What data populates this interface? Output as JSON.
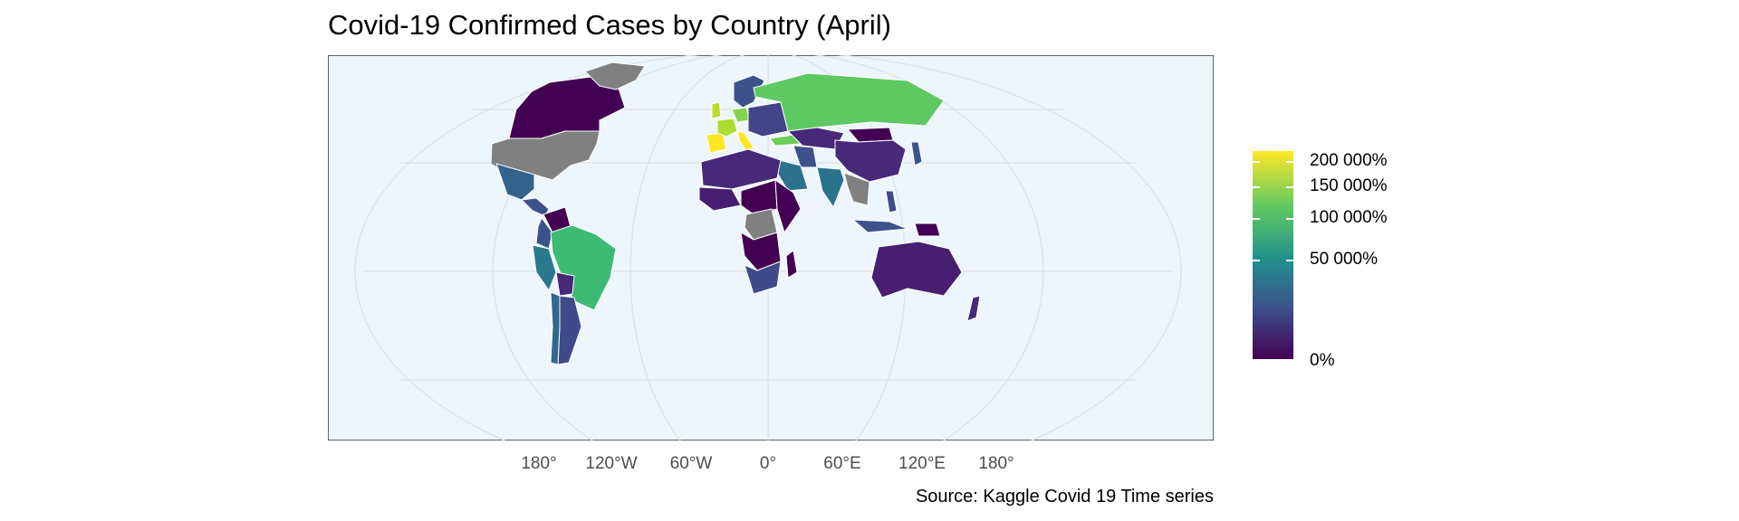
{
  "title": "Covid-19 Confirmed Cases by Country (April)",
  "caption": "Source: Kaggle Covid 19 Time series",
  "colors": {
    "ocean": "#eef6fd",
    "panel_border": "#333333",
    "graticule": "#e0e0e0",
    "no_data": "#808080",
    "scale_low": "#440154",
    "scale_high": "#fde725"
  },
  "x_axis": {
    "ticks": [
      "180°",
      "120°W",
      "60°W",
      "0°",
      "60°E",
      "120°E",
      "180°"
    ]
  },
  "legend": {
    "labels": [
      "200 000%",
      "150 000%",
      "100 000%",
      "50 000%",
      "0%"
    ]
  },
  "chart_data": {
    "type": "choropleth",
    "projection": "Robinson (world)",
    "color_scale": "viridis",
    "values_unit": "%",
    "legend_breaks": [
      200000,
      150000,
      100000,
      50000,
      0
    ],
    "regions": [
      {
        "name": "Canada",
        "fill": "#440154"
      },
      {
        "name": "United States",
        "fill": "#808080"
      },
      {
        "name": "Greenland",
        "fill": "#808080"
      },
      {
        "name": "Mexico",
        "fill": "#33638d"
      },
      {
        "name": "Central America",
        "fill": "#3b528b"
      },
      {
        "name": "Venezuela",
        "fill": "#440154"
      },
      {
        "name": "Colombia",
        "fill": "#3b528b"
      },
      {
        "name": "Peru",
        "fill": "#2a788e"
      },
      {
        "name": "Brazil",
        "fill": "#3cbb75"
      },
      {
        "name": "Bolivia",
        "fill": "#482878"
      },
      {
        "name": "Argentina",
        "fill": "#3e4a89"
      },
      {
        "name": "Chile",
        "fill": "#31688e"
      },
      {
        "name": "Spain",
        "fill": "#fde725"
      },
      {
        "name": "Italy",
        "fill": "#fde725"
      },
      {
        "name": "France",
        "fill": "#addc30"
      },
      {
        "name": "United Kingdom",
        "fill": "#b8de29"
      },
      {
        "name": "Germany",
        "fill": "#84d44b"
      },
      {
        "name": "Scandinavia",
        "fill": "#3b528b"
      },
      {
        "name": "Eastern Europe",
        "fill": "#414487"
      },
      {
        "name": "Russia",
        "fill": "#5ec962"
      },
      {
        "name": "Turkey",
        "fill": "#6ccd5a"
      },
      {
        "name": "Kazakhstan",
        "fill": "#482878"
      },
      {
        "name": "Mongolia",
        "fill": "#440154"
      },
      {
        "name": "China",
        "fill": "#482878"
      },
      {
        "name": "Iran",
        "fill": "#3b528b"
      },
      {
        "name": "Saudi Arabia",
        "fill": "#2c728e"
      },
      {
        "name": "India",
        "fill": "#2c728e"
      },
      {
        "name": "Southeast Asia",
        "fill": "#808080"
      },
      {
        "name": "Japan",
        "fill": "#3b528b"
      },
      {
        "name": "Indonesia",
        "fill": "#3b528b"
      },
      {
        "name": "Philippines",
        "fill": "#3e4a89"
      },
      {
        "name": "Papua New Guinea",
        "fill": "#440154"
      },
      {
        "name": "Australia",
        "fill": "#481f70"
      },
      {
        "name": "New Zealand",
        "fill": "#482878"
      },
      {
        "name": "North Africa",
        "fill": "#482878"
      },
      {
        "name": "West Africa",
        "fill": "#481f70"
      },
      {
        "name": "Central Africa",
        "fill": "#440154"
      },
      {
        "name": "Democratic Republic of the Congo",
        "fill": "#808080"
      },
      {
        "name": "East Africa",
        "fill": "#440154"
      },
      {
        "name": "Southern Africa",
        "fill": "#440154"
      },
      {
        "name": "South Africa",
        "fill": "#3e4a89"
      },
      {
        "name": "Madagascar",
        "fill": "#440154"
      }
    ]
  }
}
